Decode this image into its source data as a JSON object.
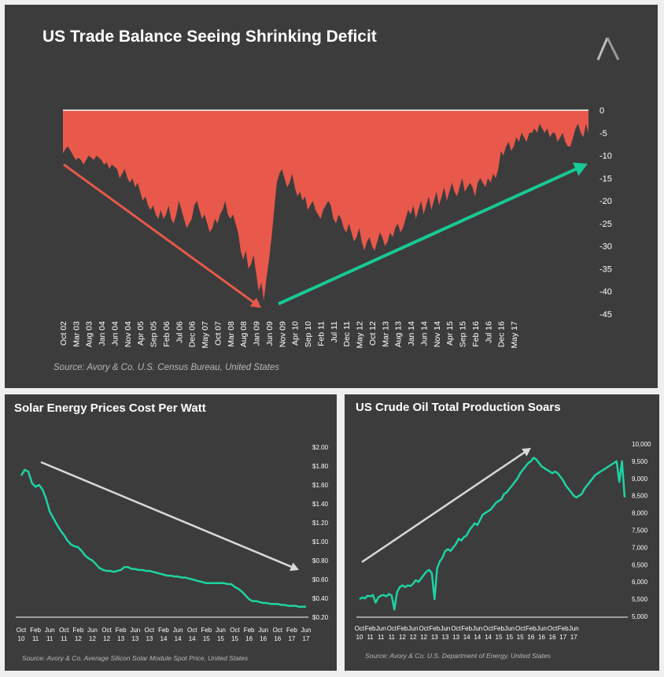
{
  "colors": {
    "panel_bg": "#3c3c3c",
    "deficit_fill": "#e8594b",
    "up_arrow": "#17c994",
    "down_arrow": "#e8594b",
    "solar_line": "#1ed3a3",
    "oil_line": "#1ed3a3",
    "trend_arrow": "#d9d9d9",
    "text": "#ffffff",
    "muted_text": "#b8b8b8"
  },
  "logo": {
    "icon": "avory-logo-icon"
  },
  "panels": {
    "top": {
      "title": "US Trade Balance Seeing Shrinking Deficit",
      "source": "Source: Avory & Co.  U.S. Census Bureau, United States"
    },
    "solar": {
      "title": "Solar Energy Prices Cost Per Watt",
      "source": "Source: Avory & Co.  Average Silicon Solar Module Spot Price, United States"
    },
    "oil": {
      "title": "US Crude Oil Total Production Soars",
      "source": "Source: Avory & Co.  U.S. Department of Energy, United States"
    }
  },
  "chart_data": [
    {
      "type": "area",
      "title": "US Trade Balance Seeing Shrinking Deficit",
      "xlabel": "",
      "ylabel": "",
      "ylim": [
        -45,
        0
      ],
      "yticks": [
        0,
        -5,
        -10,
        -15,
        -20,
        -25,
        -30,
        -35,
        -40,
        -45
      ],
      "ytick_labels": [
        "0",
        "-5",
        "-10",
        "-15",
        "-20",
        "-25",
        "-30",
        "-35",
        "-40",
        "-45"
      ],
      "y_axis_side": "right",
      "xtick_labels": [
        "Oct 02",
        "Mar 03",
        "Aug 03",
        "Jan 04",
        "Jun 04",
        "Nov 04",
        "Apr 05",
        "Sep 05",
        "Feb 06",
        "Jul 06",
        "Dec 06",
        "May 07",
        "Oct 07",
        "Mar 08",
        "Aug 08",
        "Jan 09",
        "Jun 09",
        "Nov 09",
        "Apr 10",
        "Sep 10",
        "Feb 11",
        "Jul 11",
        "Dec 11",
        "May 12",
        "Oct 12",
        "Mar 13",
        "Aug 13",
        "Jan 14",
        "Jun 14",
        "Nov 14",
        "Apr 15",
        "Sep 15",
        "Feb 16",
        "Jul 16",
        "Dec 16",
        "May 17"
      ],
      "x_index_per_tick": 5,
      "series": [
        {
          "values": [
            -9.5,
            -8.5,
            -8,
            -9,
            -10,
            -11,
            -10.5,
            -11,
            -12,
            -11,
            -10,
            -10.5,
            -11,
            -10,
            -10.5,
            -11,
            -12,
            -11.5,
            -13,
            -12,
            -12.5,
            -13,
            -15,
            -14,
            -13,
            -15,
            -16,
            -15,
            -17,
            -16,
            -18,
            -20,
            -19,
            -21,
            -22,
            -21,
            -23,
            -24,
            -22,
            -24,
            -23,
            -21,
            -24,
            -25,
            -23,
            -20,
            -22,
            -24,
            -26,
            -25,
            -24,
            -21,
            -20,
            -22,
            -24,
            -23,
            -25,
            -27,
            -26,
            -24,
            -25,
            -23,
            -22,
            -20,
            -23,
            -24,
            -23,
            -25,
            -27,
            -31,
            -33,
            -31,
            -35,
            -34,
            -32,
            -36,
            -40,
            -38,
            -42,
            -37,
            -33,
            -28,
            -22,
            -16,
            -14,
            -13,
            -15,
            -17,
            -16,
            -14,
            -17,
            -19,
            -18,
            -20,
            -19,
            -22,
            -21,
            -20,
            -22,
            -23,
            -24,
            -22,
            -21,
            -20,
            -21,
            -24,
            -25,
            -23,
            -24,
            -26,
            -27,
            -25,
            -27,
            -29,
            -28,
            -26,
            -29,
            -31,
            -29,
            -28,
            -30,
            -31,
            -29,
            -27,
            -28,
            -30,
            -29,
            -27,
            -28,
            -26,
            -25,
            -27,
            -26,
            -24,
            -22,
            -23,
            -21,
            -24,
            -22,
            -20,
            -23,
            -21,
            -19,
            -22,
            -20,
            -18,
            -21,
            -19,
            -17,
            -20,
            -18,
            -16,
            -18,
            -19,
            -17,
            -15,
            -18,
            -17,
            -16,
            -17,
            -19,
            -16,
            -15,
            -16,
            -17,
            -15,
            -16,
            -14,
            -15,
            -13,
            -9,
            -10,
            -8,
            -7,
            -9,
            -8,
            -6,
            -7,
            -5,
            -6,
            -7,
            -5,
            -5,
            -4,
            -5,
            -3,
            -4,
            -5,
            -4,
            -6,
            -5,
            -5,
            -7,
            -6,
            -5,
            -7,
            -8,
            -8,
            -6,
            -4,
            -3,
            -5,
            -6,
            -3,
            -5
          ]
        }
      ],
      "annotations": [
        "down-trend-arrow",
        "up-trend-arrow"
      ]
    },
    {
      "type": "line",
      "title": "Solar Energy Prices Cost Per Watt",
      "xlabel": "",
      "ylabel": "",
      "ylim": [
        0.2,
        2.0
      ],
      "yticks": [
        2.0,
        1.8,
        1.6,
        1.4,
        1.2,
        1.0,
        0.8,
        0.6,
        0.4,
        0.2
      ],
      "ytick_labels": [
        "$2.00",
        "$1.80",
        "$1.60",
        "$1.40",
        "$1.20",
        "$1.00",
        "$0.80",
        "$0.60",
        "$0.40",
        "$0.20"
      ],
      "y_axis_side": "right",
      "xtick_labels": [
        [
          "Oct",
          "10"
        ],
        [
          "Feb",
          "11"
        ],
        [
          "Jun",
          "11"
        ],
        [
          "Oct",
          "11"
        ],
        [
          "Feb",
          "12"
        ],
        [
          "Jun",
          "12"
        ],
        [
          "Oct",
          "12"
        ],
        [
          "Feb",
          "13"
        ],
        [
          "Jun",
          "13"
        ],
        [
          "Oct",
          "13"
        ],
        [
          "Feb",
          "14"
        ],
        [
          "Jun",
          "14"
        ],
        [
          "Oct",
          "14"
        ],
        [
          "Feb",
          "15"
        ],
        [
          "Jun",
          "15"
        ],
        [
          "Oct",
          "15"
        ],
        [
          "Feb",
          "16"
        ],
        [
          "Jun",
          "16"
        ],
        [
          "Oct",
          "16"
        ],
        [
          "Feb",
          "17"
        ],
        [
          "Jun",
          "17"
        ]
      ],
      "x_index_per_tick": 4,
      "series": [
        {
          "values": [
            1.7,
            1.76,
            1.74,
            1.62,
            1.58,
            1.6,
            1.55,
            1.45,
            1.32,
            1.25,
            1.18,
            1.12,
            1.07,
            1.01,
            0.97,
            0.95,
            0.94,
            0.9,
            0.85,
            0.82,
            0.8,
            0.76,
            0.72,
            0.7,
            0.69,
            0.69,
            0.68,
            0.69,
            0.7,
            0.73,
            0.73,
            0.71,
            0.71,
            0.7,
            0.7,
            0.69,
            0.69,
            0.68,
            0.67,
            0.66,
            0.65,
            0.64,
            0.64,
            0.63,
            0.63,
            0.62,
            0.62,
            0.61,
            0.6,
            0.59,
            0.58,
            0.57,
            0.56,
            0.56,
            0.56,
            0.56,
            0.56,
            0.56,
            0.55,
            0.55,
            0.52,
            0.5,
            0.47,
            0.43,
            0.39,
            0.37,
            0.37,
            0.36,
            0.35,
            0.35,
            0.34,
            0.34,
            0.34,
            0.33,
            0.33,
            0.32,
            0.32,
            0.32,
            0.31,
            0.31,
            0.31
          ]
        }
      ],
      "annotations": [
        "down-trend-arrow"
      ]
    },
    {
      "type": "line",
      "title": "US Crude Oil Total Production Soars",
      "xlabel": "",
      "ylabel": "",
      "ylim": [
        5000,
        10000
      ],
      "yticks": [
        10000,
        9500,
        9000,
        8500,
        8000,
        7500,
        7000,
        6500,
        6000,
        5500,
        5000
      ],
      "ytick_labels": [
        "10,000",
        "9,500",
        "9,000",
        "8,500",
        "8,000",
        "7,500",
        "7,000",
        "6,500",
        "6,000",
        "5,500",
        "5,000"
      ],
      "y_axis_side": "right",
      "xtick_labels": [
        [
          "Oct",
          "10"
        ],
        [
          "Feb",
          "11"
        ],
        [
          "Jun",
          "11"
        ],
        [
          "Oct",
          "11"
        ],
        [
          "Feb",
          "12"
        ],
        [
          "Jun",
          "12"
        ],
        [
          "Oct",
          "12"
        ],
        [
          "Feb",
          "13"
        ],
        [
          "Jun",
          "13"
        ],
        [
          "Oct",
          "13"
        ],
        [
          "Feb",
          "14"
        ],
        [
          "Jun",
          "14"
        ],
        [
          "Oct",
          "14"
        ],
        [
          "Feb",
          "15"
        ],
        [
          "Jun",
          "15"
        ],
        [
          "Oct",
          "15"
        ],
        [
          "Feb",
          "16"
        ],
        [
          "Jun",
          "16"
        ],
        [
          "Oct",
          "16"
        ],
        [
          "Feb",
          "17"
        ],
        [
          "Jun",
          "17"
        ]
      ],
      "x_index_per_tick": 4,
      "series": [
        {
          "values": [
            5500,
            5550,
            5520,
            5600,
            5580,
            5620,
            5400,
            5550,
            5600,
            5620,
            5580,
            5650,
            5600,
            5200,
            5700,
            5850,
            5900,
            5850,
            5900,
            5880,
            5950,
            6050,
            6000,
            6100,
            6200,
            6300,
            6350,
            6250,
            5500,
            6400,
            6600,
            6700,
            6900,
            6950,
            6900,
            7000,
            7100,
            7250,
            7200,
            7300,
            7350,
            7500,
            7600,
            7700,
            7650,
            7800,
            7950,
            8000,
            8050,
            8100,
            8200,
            8300,
            8350,
            8400,
            8550,
            8600,
            8700,
            8800,
            8900,
            9000,
            9150,
            9250,
            9350,
            9450,
            9500,
            9600,
            9550,
            9450,
            9350,
            9300,
            9250,
            9200,
            9150,
            9200,
            9150,
            9050,
            8950,
            8800,
            8700,
            8600,
            8500,
            8450,
            8500,
            8550,
            8700,
            8800,
            8900,
            9000,
            9100,
            9150,
            9200,
            9250,
            9300,
            9350,
            9400,
            9450,
            9500,
            8900,
            9500,
            8450
          ]
        }
      ],
      "annotations": [
        "up-trend-arrow"
      ]
    }
  ]
}
